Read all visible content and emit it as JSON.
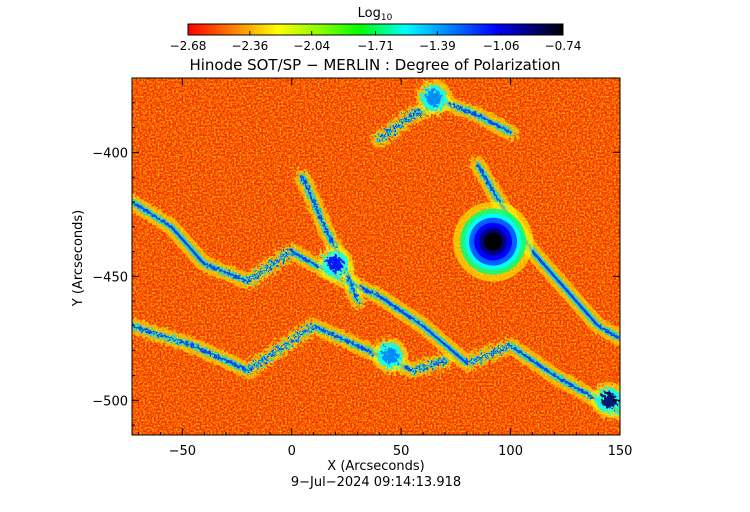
{
  "chart_data": {
    "type": "heatmap",
    "title": "Hinode SOT/SP − MERLIN : Degree of Polarization",
    "xlabel": "X (Arcseconds)",
    "ylabel": "Y (Arcseconds)",
    "timestamp": "9−Jul−2024 09:14:13.918",
    "xlim": [
      -73,
      150
    ],
    "ylim": [
      -514,
      -370
    ],
    "x_ticks": [
      -50,
      0,
      50,
      100,
      150
    ],
    "y_ticks": [
      -400,
      -450,
      -500
    ],
    "x_tick_labels": [
      "−50",
      "0",
      "50",
      "100",
      "150"
    ],
    "y_tick_labels": [
      "−400",
      "−450",
      "−500"
    ],
    "colorbar": {
      "label_base": "Log",
      "label_sub": "10",
      "min": -2.68,
      "max": -0.74,
      "ticks": [
        -2.68,
        -2.36,
        -2.04,
        -1.71,
        -1.39,
        -1.06,
        -0.74
      ],
      "tick_labels": [
        "−2.68",
        "−2.36",
        "−2.04",
        "−1.71",
        "−1.39",
        "−1.06",
        "−0.74"
      ],
      "colormap": [
        "#ff0000",
        "#ff8000",
        "#ffff00",
        "#80ff00",
        "#00ff00",
        "#00ffff",
        "#0080ff",
        "#0000ff",
        "#000066",
        "#000000"
      ]
    },
    "features": [
      {
        "name": "sunspot",
        "x": 92,
        "y": -436,
        "value": -0.74
      },
      {
        "name": "network-patch",
        "x": 20,
        "y": -445,
        "value": -1.2
      },
      {
        "name": "network-patch",
        "x": 65,
        "y": -378,
        "value": -1.4
      },
      {
        "name": "network-patch",
        "x": 145,
        "y": -500,
        "value": -1.0
      },
      {
        "name": "network-patch",
        "x": 45,
        "y": -482,
        "value": -1.4
      }
    ]
  }
}
